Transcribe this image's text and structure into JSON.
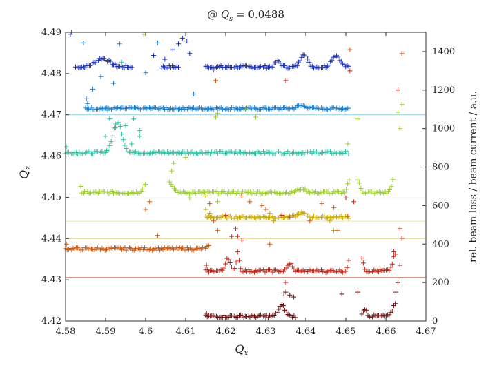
{
  "chart_data": {
    "type": "scatter",
    "title": "@ Q_s = 0.0488",
    "title_parts": {
      "prefix": "@ ",
      "var": "Q",
      "sub": "s",
      "rest": " = 0.0488"
    },
    "xlabel": "Q_x",
    "xlabel_parts": {
      "var": "Q",
      "sub": "x"
    },
    "ylabel": "Q_z",
    "ylabel_parts": {
      "var": "Q",
      "sub": "z"
    },
    "y2label": "rel. beam loss / beam current / a.u.",
    "xlim": [
      4.58,
      4.67
    ],
    "ylim": [
      4.42,
      4.49
    ],
    "y2lim": [
      0,
      1500
    ],
    "xticks": [
      "4.58",
      "4.59",
      "4.6",
      "4.61",
      "4.62",
      "4.63",
      "4.64",
      "4.65",
      "4.66",
      "4.67"
    ],
    "yticks": [
      "4.42",
      "4.43",
      "4.44",
      "4.45",
      "4.46",
      "4.47",
      "4.48",
      "4.49"
    ],
    "y2ticks": [
      "0",
      "200",
      "400",
      "600",
      "800",
      "1000",
      "1200",
      "1400"
    ],
    "grid": false,
    "marker": "+",
    "reference_lines": [
      {
        "qz": 4.4306,
        "color": "#d9957e"
      },
      {
        "qz": 4.44,
        "color": "#e5d58a"
      },
      {
        "qz": 4.4442,
        "color": "#ecea9c"
      },
      {
        "qz": 4.4498,
        "color": "#dfe9a8"
      },
      {
        "qz": 4.47,
        "color": "#8fcfe8"
      }
    ],
    "series": [
      {
        "name": "series-1",
        "color": "#1a2fb5",
        "base": 1320,
        "ranges": [
          [
            4.5825,
            4.5966
          ],
          [
            4.604,
            4.6085
          ],
          [
            4.615,
            4.651
          ]
        ],
        "bumps": [
          {
            "x": 4.5892,
            "h": 45,
            "w": 0.0025
          },
          {
            "x": 4.6395,
            "h": 70,
            "w": 0.0012
          },
          {
            "x": 4.633,
            "h": 30,
            "w": 0.001
          },
          {
            "x": 4.6475,
            "h": 60,
            "w": 0.0015
          }
        ],
        "extra": [
          [
            4.5812,
            1490
          ],
          [
            4.6068,
            1410
          ],
          [
            4.6082,
            1440
          ],
          [
            4.6092,
            1470
          ],
          [
            4.6103,
            1455
          ],
          [
            4.611,
            1390
          ],
          [
            4.6048,
            1360
          ],
          [
            4.602,
            1380
          ]
        ],
        "legend_x": 4.5815,
        "legend_y": 1500
      },
      {
        "name": "series-2",
        "color": "#1a7fd0",
        "base": 1105,
        "ranges": [
          [
            4.585,
            4.651
          ]
        ],
        "bumps": [
          {
            "x": 4.639,
            "h": 15,
            "w": 0.0015
          }
        ],
        "extra": [
          [
            4.5845,
            1445
          ],
          [
            4.5935,
            1440
          ],
          [
            4.5888,
            1270
          ],
          [
            4.592,
            1235
          ],
          [
            4.5868,
            1205
          ],
          [
            4.603,
            1445
          ],
          [
            4.612,
            1180
          ],
          [
            4.5855,
            1130
          ],
          [
            4.6,
            1290
          ]
        ],
        "legend_x": 4.5852,
        "legend_y": 1155
      },
      {
        "name": "series-3",
        "color": "#2fbfa0",
        "base": 875,
        "ranges": [
          [
            4.58,
            4.651
          ]
        ],
        "bumps": [
          {
            "x": 4.593,
            "h": 160,
            "w": 0.0016
          }
        ],
        "extra": [
          [
            4.591,
            1050
          ],
          [
            4.5925,
            1005
          ],
          [
            4.595,
            1015
          ],
          [
            4.597,
            1050
          ],
          [
            4.5905,
            1095
          ],
          [
            4.5985,
            990
          ],
          [
            4.594,
            1345
          ],
          [
            4.5985,
            960
          ],
          [
            4.5965,
            920
          ],
          [
            4.59,
            960
          ]
        ],
        "legend_x": 4.5802,
        "legend_y": 905
      },
      {
        "name": "series-4",
        "color": "#9ccc2e",
        "base": 668,
        "ranges": [
          [
            4.584,
            4.6
          ],
          [
            4.606,
            4.651
          ],
          [
            4.653,
            4.662
          ]
        ],
        "bumps": [
          {
            "x": 4.6,
            "h": 45,
            "w": 0.001
          },
          {
            "x": 4.606,
            "h": 55,
            "w": 0.001
          },
          {
            "x": 4.651,
            "h": 70,
            "w": 0.0008
          },
          {
            "x": 4.653,
            "h": 60,
            "w": 0.0008
          },
          {
            "x": 4.662,
            "h": 70,
            "w": 0.0008
          },
          {
            "x": 4.639,
            "h": 20,
            "w": 0.0015
          }
        ],
        "extra": [
          [
            4.6065,
            780
          ],
          [
            4.607,
            820
          ],
          [
            4.61,
            850
          ],
          [
            4.6175,
            1060
          ],
          [
            4.618,
            1080
          ],
          [
            4.6275,
            1060
          ],
          [
            4.625,
            1100
          ],
          [
            4.6505,
            920
          ],
          [
            4.653,
            1050
          ],
          [
            4.663,
            1085
          ],
          [
            4.6635,
            1000
          ],
          [
            4.664,
            1125
          ],
          [
            4.5995,
            1490
          ],
          [
            4.611,
            640
          ],
          [
            4.618,
            620
          ]
        ],
        "legend_x": 4.5838,
        "legend_y": 700
      },
      {
        "name": "series-5",
        "color": "#c9a800",
        "base": 540,
        "ranges": [
          [
            4.615,
            4.651
          ]
        ],
        "bumps": [
          {
            "x": 4.639,
            "h": 20,
            "w": 0.0015
          }
        ],
        "extra": [
          [
            4.615,
            650
          ],
          [
            4.616,
            560
          ],
          [
            4.631,
            560
          ],
          [
            4.632,
            520
          ],
          [
            4.646,
            520
          ],
          [
            4.647,
            470
          ]
        ],
        "legend_x": 4.615,
        "legend_y": 580
      },
      {
        "name": "series-6",
        "color": "#d05a10",
        "base": 375,
        "ranges": [
          [
            4.58,
            4.616
          ]
        ],
        "bumps": [
          {
            "x": 4.616,
            "h": 15,
            "w": 0.001
          }
        ],
        "extra": [
          [
            4.617,
            520
          ],
          [
            4.618,
            470
          ],
          [
            4.617,
            1305
          ],
          [
            4.6175,
            1250
          ],
          [
            4.6,
            580
          ],
          [
            4.601,
            620
          ],
          [
            4.603,
            445
          ],
          [
            4.624,
            650
          ],
          [
            4.626,
            620
          ],
          [
            4.629,
            600
          ],
          [
            4.63,
            580
          ],
          [
            4.634,
            550
          ],
          [
            4.636,
            540
          ],
          [
            4.641,
            520
          ],
          [
            4.644,
            610
          ],
          [
            4.647,
            590
          ],
          [
            4.648,
            470
          ],
          [
            4.6505,
            545
          ],
          [
            4.651,
            1410
          ],
          [
            4.664,
            1390
          ],
          [
            4.616,
            610
          ],
          [
            4.631,
            400
          ]
        ],
        "legend_x": 4.5802,
        "legend_y": 400
      },
      {
        "name": "series-7",
        "color": "#c0281a",
        "base": 260,
        "ranges": [
          [
            4.615,
            4.651
          ],
          [
            4.654,
            4.6625
          ]
        ],
        "bumps": [
          {
            "x": 4.6205,
            "h": 70,
            "w": 0.0008
          },
          {
            "x": 4.623,
            "h": 100,
            "w": 0.0005
          },
          {
            "x": 4.636,
            "h": 40,
            "w": 0.0008
          },
          {
            "x": 4.651,
            "h": 60,
            "w": 0.0006
          },
          {
            "x": 4.654,
            "h": 70,
            "w": 0.0006
          },
          {
            "x": 4.6625,
            "h": 90,
            "w": 0.001
          }
        ],
        "extra": [
          [
            4.6225,
            480
          ],
          [
            4.623,
            440
          ],
          [
            4.6215,
            440
          ],
          [
            4.624,
            420
          ],
          [
            4.635,
            200
          ],
          [
            4.634,
            550
          ],
          [
            4.65,
            640
          ],
          [
            4.652,
            620
          ],
          [
            4.6635,
            480
          ],
          [
            4.664,
            430
          ],
          [
            4.662,
            360
          ],
          [
            4.663,
            1200
          ],
          [
            4.651,
            1300
          ],
          [
            4.635,
            1250
          ],
          [
            4.62,
            550
          ]
        ],
        "legend_x": 4.6152,
        "legend_y": 290
      },
      {
        "name": "series-8",
        "color": "#6b0f10",
        "base": 25,
        "ranges": [
          [
            4.615,
            4.6375
          ],
          [
            4.654,
            4.6625
          ]
        ],
        "bumps": [
          {
            "x": 4.634,
            "h": 55,
            "w": 0.0012
          },
          {
            "x": 4.6625,
            "h": 70,
            "w": 0.001
          },
          {
            "x": 4.6548,
            "h": 40,
            "w": 0.0006
          }
        ],
        "extra": [
          [
            4.6345,
            145
          ],
          [
            4.635,
            150
          ],
          [
            4.636,
            135
          ],
          [
            4.637,
            125
          ],
          [
            4.649,
            140
          ],
          [
            4.653,
            150
          ],
          [
            4.6625,
            150
          ],
          [
            4.663,
            200
          ],
          [
            4.6635,
            290
          ]
        ],
        "legend_x": 4.6152,
        "legend_y": 40
      }
    ]
  }
}
